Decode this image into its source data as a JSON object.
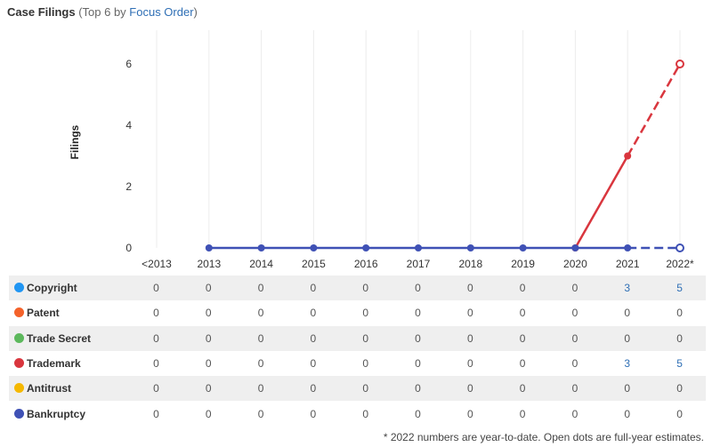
{
  "header": {
    "title": "Case Filings",
    "subtitle_prefix": "(Top 6 by ",
    "subtitle_link": "Focus Order",
    "subtitle_suffix": ")"
  },
  "chart_data": {
    "type": "line",
    "ylabel": "Filings",
    "ylim": [
      0,
      7
    ],
    "yticks": [
      0,
      2,
      4,
      6
    ],
    "categories": [
      "<2013",
      "2013",
      "2014",
      "2015",
      "2016",
      "2017",
      "2018",
      "2019",
      "2020",
      "2021",
      "2022*"
    ],
    "grid": true,
    "series": [
      {
        "name": "Copyright",
        "color": "#2196f3",
        "values": [
          0,
          0,
          0,
          0,
          0,
          0,
          0,
          0,
          0,
          3,
          5
        ]
      },
      {
        "name": "Patent",
        "color": "#f4622a",
        "values": [
          0,
          0,
          0,
          0,
          0,
          0,
          0,
          0,
          0,
          0,
          0
        ]
      },
      {
        "name": "Trade Secret",
        "color": "#5cb85c",
        "values": [
          0,
          0,
          0,
          0,
          0,
          0,
          0,
          0,
          0,
          0,
          0
        ]
      },
      {
        "name": "Trademark",
        "color": "#d9363e",
        "values": [
          0,
          0,
          0,
          0,
          0,
          0,
          0,
          0,
          0,
          3,
          5
        ]
      },
      {
        "name": "Antitrust",
        "color": "#f5b800",
        "values": [
          0,
          0,
          0,
          0,
          0,
          0,
          0,
          0,
          0,
          0,
          0
        ]
      },
      {
        "name": "Bankruptcy",
        "color": "#3f51b5",
        "values": [
          0,
          0,
          0,
          0,
          0,
          0,
          0,
          0,
          0,
          0,
          0
        ]
      }
    ],
    "plotted_lines": [
      {
        "name": "Trademark",
        "color": "#d9363e",
        "from_index": 8,
        "values": [
          0,
          3
        ],
        "estimate": {
          "index": 10,
          "value": 6
        }
      },
      {
        "name": "Bankruptcy",
        "color": "#3f51b5",
        "from_index": 1,
        "values": [
          0,
          0,
          0,
          0,
          0,
          0,
          0,
          0,
          0
        ],
        "estimate": {
          "index": 10,
          "value": 0
        }
      }
    ]
  },
  "footnote": "* 2022 numbers are year-to-date. Open dots are full-year estimates."
}
